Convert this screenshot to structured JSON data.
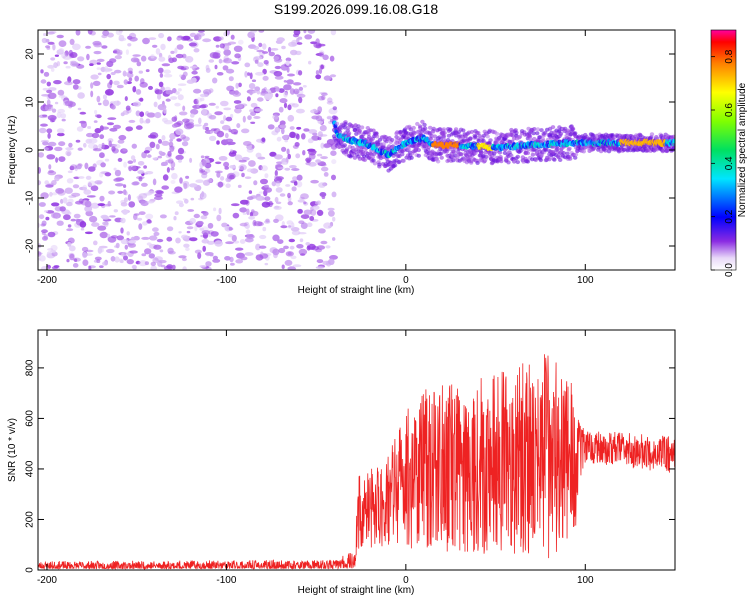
{
  "chart_data": [
    {
      "type": "heatmap",
      "title": "S199.2026.099.16.08.G18",
      "xlabel": "Height of straight line (km)",
      "ylabel": "Frequency (Hz)",
      "xlim": [
        -205,
        150
      ],
      "ylim": [
        -25,
        25
      ],
      "xticks": [
        -200,
        -100,
        0,
        100
      ],
      "yticks": [
        -20,
        -10,
        0,
        10,
        20
      ],
      "colorbar": {
        "label": "Normalized spectral amplitude",
        "range": [
          0.0,
          0.9
        ],
        "ticks": [
          "0.0",
          "0.2",
          "0.4",
          "0.6",
          "0.8"
        ]
      },
      "noise_region": {
        "x_start": -205,
        "x_end": -40,
        "freq_min": -25,
        "freq_max": 25,
        "amplitude_range": [
          0.05,
          0.15
        ]
      },
      "signal_ridge": [
        {
          "x": -40,
          "freq": 6
        },
        {
          "x": -38,
          "freq": 3
        },
        {
          "x": -30,
          "freq": 2
        },
        {
          "x": -20,
          "freq": 1
        },
        {
          "x": -10,
          "freq": -1
        },
        {
          "x": 0,
          "freq": 1.5
        },
        {
          "x": 10,
          "freq": 2.5
        },
        {
          "x": 15,
          "freq": 1
        },
        {
          "x": 30,
          "freq": 1
        },
        {
          "x": 50,
          "freq": 0.5
        },
        {
          "x": 70,
          "freq": 1
        },
        {
          "x": 90,
          "freq": 1.5
        },
        {
          "x": 100,
          "freq": 1.5
        },
        {
          "x": 150,
          "freq": 1.5
        }
      ],
      "signal_peak_segments": [
        {
          "x_start": 15,
          "x_end": 30,
          "amplitude": 0.85
        },
        {
          "x_start": 40,
          "x_end": 48,
          "amplitude": 0.75
        },
        {
          "x_start": 120,
          "x_end": 145,
          "amplitude": 0.8
        }
      ]
    },
    {
      "type": "line",
      "xlabel": "Height of straight line (km)",
      "ylabel": "SNR (10 * v/v)",
      "xlim": [
        -205,
        150
      ],
      "ylim": [
        0,
        950
      ],
      "xticks": [
        -200,
        -100,
        0,
        100
      ],
      "yticks": [
        0,
        200,
        400,
        600,
        800
      ],
      "series": [
        {
          "name": "SNR",
          "color": "#ee2222",
          "envelope": [
            {
              "x": -205,
              "low": 5,
              "high": 35
            },
            {
              "x": -40,
              "low": 5,
              "high": 40
            },
            {
              "x": -28,
              "low": 10,
              "high": 80
            },
            {
              "x": -27,
              "low": 60,
              "high": 380
            },
            {
              "x": -15,
              "low": 80,
              "high": 420
            },
            {
              "x": 5,
              "low": 80,
              "high": 720
            },
            {
              "x": 50,
              "low": 60,
              "high": 780
            },
            {
              "x": 80,
              "low": 40,
              "high": 870
            },
            {
              "x": 95,
              "low": 150,
              "high": 720
            },
            {
              "x": 100,
              "low": 380,
              "high": 600
            },
            {
              "x": 150,
              "low": 330,
              "high": 580
            }
          ]
        }
      ]
    }
  ]
}
